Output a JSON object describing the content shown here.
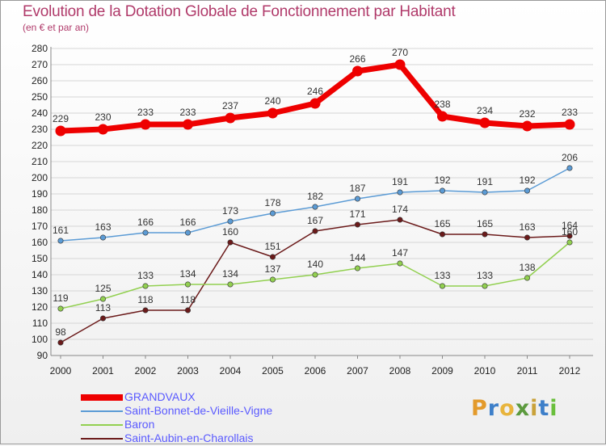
{
  "header": {
    "title": "Evolution de la Dotation Globale de Fonctionnement par Habitant",
    "subtitle": "(en € et par an)"
  },
  "logo": {
    "text": "Proxiti",
    "colors": [
      "#e39a2b",
      "#3d7fc9",
      "#e8b43c",
      "#5c9a3e",
      "#c9a23a",
      "#3d7fc9",
      "#6abf3c"
    ]
  },
  "chart_data": {
    "type": "line",
    "title": "Evolution de la Dotation Globale de Fonctionnement par Habitant",
    "subtitle": "(en € et par an)",
    "x": [
      "2000",
      "2001",
      "2002",
      "2003",
      "2004",
      "2005",
      "2006",
      "2007",
      "2008",
      "2009",
      "2010",
      "2011",
      "2012"
    ],
    "ylim": [
      90,
      280
    ],
    "yticks": [
      90,
      100,
      110,
      120,
      130,
      140,
      150,
      160,
      170,
      180,
      190,
      200,
      210,
      220,
      230,
      240,
      250,
      260,
      270,
      280
    ],
    "grid": "horizontal",
    "legend_placement": "bottom-left",
    "series": [
      {
        "name": "GRANDVAUX",
        "color": "#ee0000",
        "values": [
          229,
          230,
          233,
          233,
          237,
          240,
          246,
          266,
          270,
          238,
          234,
          232,
          233
        ]
      },
      {
        "name": "Saint-Bonnet-de-Vieille-Vigne",
        "color": "#5b9bd5",
        "values": [
          161,
          163,
          166,
          166,
          173,
          178,
          182,
          187,
          191,
          192,
          191,
          192,
          206
        ]
      },
      {
        "name": "Baron",
        "color": "#92d050",
        "values": [
          119,
          125,
          133,
          134,
          134,
          137,
          140,
          144,
          147,
          133,
          133,
          138,
          160
        ]
      },
      {
        "name": "Saint-Aubin-en-Charollais",
        "color": "#6b1a1a",
        "values": [
          98,
          113,
          118,
          118,
          160,
          151,
          167,
          171,
          174,
          165,
          165,
          163,
          164
        ]
      }
    ]
  }
}
